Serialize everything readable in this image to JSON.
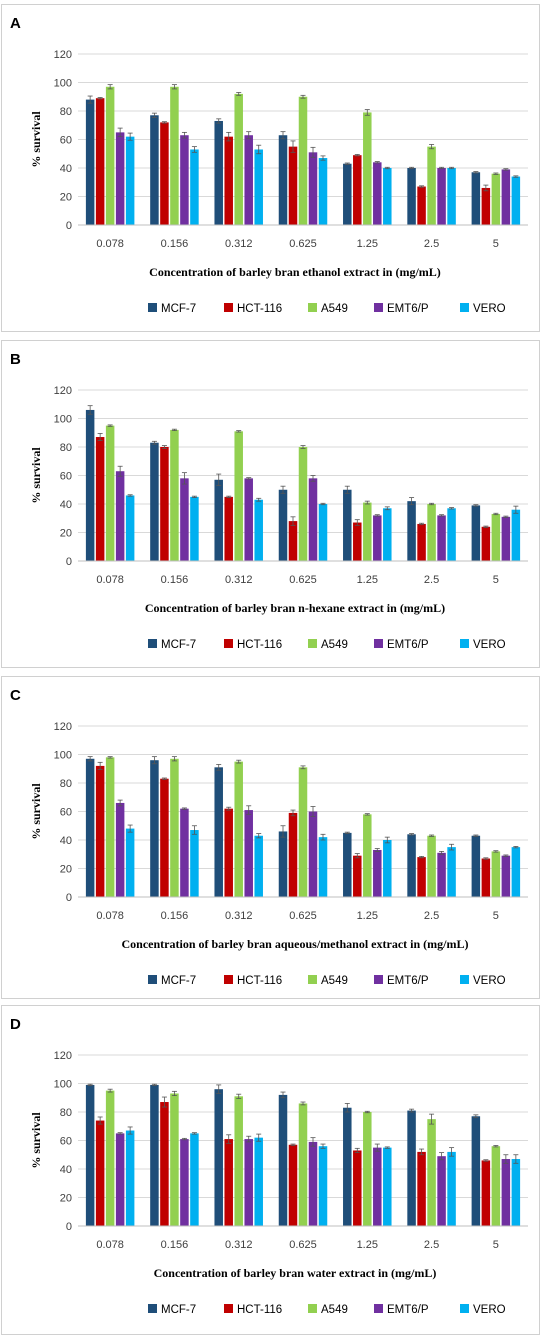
{
  "colors": {
    "MCF-7": "#1f4e79",
    "HCT-116": "#c00000",
    "A549": "#92d050",
    "EMT6/P": "#7030a0",
    "VERO": "#00b0f0"
  },
  "chart_data": [
    {
      "type": "bar",
      "panel_label": "A",
      "ylabel": "% survival",
      "xlabel": "Concentration of barley bran ethanol extract in (mg/mL)",
      "ylim": [
        0,
        120
      ],
      "yticks": [
        "0",
        "20",
        "40",
        "60",
        "80",
        "100",
        "120"
      ],
      "categories": [
        "0.078",
        "0.156",
        "0.312",
        "0.625",
        "1.25",
        "2.5",
        "5"
      ],
      "legend_position": "bottom",
      "grid": true,
      "series": [
        {
          "name": "MCF-7",
          "values": [
            88,
            77,
            73,
            63,
            43,
            40,
            37
          ],
          "errors": [
            2.5,
            1.5,
            1.5,
            2.5,
            0.5,
            0.5,
            0.5
          ]
        },
        {
          "name": "HCT-116",
          "values": [
            89,
            72,
            62,
            55,
            49,
            27,
            26
          ],
          "errors": [
            0.5,
            0.5,
            3,
            4,
            0.5,
            0.5,
            2
          ]
        },
        {
          "name": "A549",
          "values": [
            97,
            97,
            92,
            90,
            79,
            55,
            36
          ],
          "errors": [
            1.5,
            1.5,
            1,
            1,
            2,
            1.5,
            0.5
          ]
        },
        {
          "name": "EMT6/P",
          "values": [
            65,
            63,
            63,
            51,
            44,
            40,
            39
          ],
          "errors": [
            3,
            2,
            2.5,
            3.5,
            0.5,
            0.5,
            0.5
          ]
        },
        {
          "name": "VERO",
          "values": [
            62,
            53,
            53,
            47,
            40,
            40,
            34
          ],
          "errors": [
            2.5,
            2,
            3,
            1.5,
            0.5,
            0.5,
            0.5
          ]
        }
      ]
    },
    {
      "type": "bar",
      "panel_label": "B",
      "ylabel": "% survival",
      "xlabel": "Concentration of barley bran n-hexane extract in (mg/mL)",
      "ylim": [
        0,
        120
      ],
      "yticks": [
        "0",
        "20",
        "40",
        "60",
        "80",
        "100",
        "120"
      ],
      "categories": [
        "0.078",
        "0.156",
        "0.312",
        "0.625",
        "1.25",
        "2.5",
        "5"
      ],
      "legend_position": "bottom",
      "grid": true,
      "series": [
        {
          "name": "MCF-7",
          "values": [
            106,
            83,
            57,
            50,
            50,
            42,
            39
          ],
          "errors": [
            3,
            1,
            4,
            2.5,
            2.5,
            2.5,
            0.5
          ]
        },
        {
          "name": "HCT-116",
          "values": [
            87,
            80,
            45,
            28,
            27,
            26,
            24
          ],
          "errors": [
            2.5,
            1,
            0.5,
            3,
            2,
            0.5,
            0.5
          ]
        },
        {
          "name": "A549",
          "values": [
            95,
            92,
            91,
            80,
            41,
            40,
            33
          ],
          "errors": [
            0.5,
            0.5,
            0.5,
            1,
            1,
            0.5,
            0.5
          ]
        },
        {
          "name": "EMT6/P",
          "values": [
            63,
            58,
            58,
            58,
            32,
            32,
            31
          ],
          "errors": [
            3.5,
            4,
            0.5,
            2,
            0.5,
            0.5,
            0.5
          ]
        },
        {
          "name": "VERO",
          "values": [
            46,
            45,
            43,
            40,
            37,
            37,
            36
          ],
          "errors": [
            0.5,
            0.5,
            1,
            0.5,
            1,
            0.5,
            2.5
          ]
        }
      ]
    },
    {
      "type": "bar",
      "panel_label": "C",
      "ylabel": "% survival",
      "xlabel": "Concentration of barley bran aqueous/methanol extract in (mg/mL)",
      "ylim": [
        0,
        120
      ],
      "yticks": [
        "0",
        "20",
        "40",
        "60",
        "80",
        "100",
        "120"
      ],
      "categories": [
        "0.078",
        "0.156",
        "0.312",
        "0.625",
        "1.25",
        "2.5",
        "5"
      ],
      "legend_position": "bottom",
      "grid": true,
      "series": [
        {
          "name": "MCF-7",
          "values": [
            97,
            96,
            91,
            46,
            45,
            44,
            43
          ],
          "errors": [
            1.5,
            2.5,
            2,
            4,
            0.5,
            0.5,
            0.5
          ]
        },
        {
          "name": "HCT-116",
          "values": [
            92,
            83,
            62,
            59,
            29,
            28,
            27
          ],
          "errors": [
            2.5,
            0.5,
            1,
            2,
            1.5,
            0.5,
            0.5
          ]
        },
        {
          "name": "A549",
          "values": [
            98,
            97,
            95,
            91,
            58,
            43,
            32
          ],
          "errors": [
            0.5,
            1.5,
            1,
            1,
            0.5,
            0.5,
            0.5
          ]
        },
        {
          "name": "EMT6/P",
          "values": [
            66,
            62,
            61,
            60,
            33,
            31,
            29
          ],
          "errors": [
            2,
            0.5,
            3,
            3.5,
            1,
            1,
            0.5
          ]
        },
        {
          "name": "VERO",
          "values": [
            48,
            47,
            43,
            42,
            40,
            35,
            35
          ],
          "errors": [
            2.5,
            3,
            1.5,
            2,
            2,
            2,
            0.5
          ]
        }
      ]
    },
    {
      "type": "bar",
      "panel_label": "D",
      "ylabel": "% survival",
      "xlabel": "Concentration of barley bran water extract in (mg/mL)",
      "ylim": [
        0,
        120
      ],
      "yticks": [
        "0",
        "20",
        "40",
        "60",
        "80",
        "100",
        "120"
      ],
      "categories": [
        "0.078",
        "0.156",
        "0.312",
        "0.625",
        "1.25",
        "2.5",
        "5"
      ],
      "legend_position": "bottom",
      "grid": true,
      "series": [
        {
          "name": "MCF-7",
          "values": [
            99,
            99,
            96,
            92,
            83,
            81,
            77
          ],
          "errors": [
            0.5,
            0.5,
            3,
            2,
            3,
            1,
            1
          ]
        },
        {
          "name": "HCT-116",
          "values": [
            74,
            87,
            61,
            57,
            53,
            52,
            46
          ],
          "errors": [
            2.5,
            3.5,
            3,
            0.5,
            1.5,
            2,
            0.5
          ]
        },
        {
          "name": "A549",
          "values": [
            95,
            93,
            91,
            86,
            80,
            75,
            56
          ],
          "errors": [
            1,
            1.5,
            1.5,
            1,
            0.5,
            3.5,
            0.5
          ]
        },
        {
          "name": "EMT6/P",
          "values": [
            65,
            61,
            61,
            59,
            55,
            49,
            47
          ],
          "errors": [
            0.5,
            0.5,
            2,
            3,
            2.5,
            2.5,
            3
          ]
        },
        {
          "name": "VERO",
          "values": [
            67,
            65,
            62,
            56,
            55,
            52,
            47
          ],
          "errors": [
            2.5,
            0.5,
            2.5,
            1.5,
            0.5,
            3,
            3
          ]
        }
      ]
    }
  ]
}
